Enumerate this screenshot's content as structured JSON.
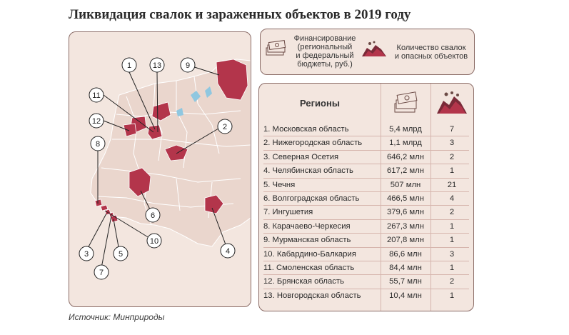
{
  "title": "Ликвидация свалок и зараженных объектов в 2019 году",
  "source": "Источник: Минприроды",
  "legend": {
    "funding": "Финансирование\n(региональный\nи федеральный\nбюджеты, руб.)",
    "dumps": "Количество свалок\nи опасных объектов"
  },
  "table": {
    "header_region": "Регионы",
    "rows": [
      {
        "region": "1. Московская область",
        "funding": "5,4 млрд",
        "count": "7"
      },
      {
        "region": "2. Нижегородская область",
        "funding": "1,1 млрд",
        "count": "3"
      },
      {
        "region": "3. Северная Осетия",
        "funding": "646,2 млн",
        "count": "2"
      },
      {
        "region": "4. Челябинская область",
        "funding": "617,2 млн",
        "count": "1"
      },
      {
        "region": "5. Чечня",
        "funding": "507 млн",
        "count": "21"
      },
      {
        "region": "6. Волгоградская область",
        "funding": "466,5 млн",
        "count": "4"
      },
      {
        "region": "7. Ингушетия",
        "funding": "379,6 млн",
        "count": "2"
      },
      {
        "region": "8. Карачаево-Черкесия",
        "funding": "267,3 млн",
        "count": "1"
      },
      {
        "region": "9. Мурманская область",
        "funding": "207,8 млн",
        "count": "1"
      },
      {
        "region": "10. Кабардино-Балкария",
        "funding": "86,6 млн",
        "count": "3"
      },
      {
        "region": "11. Смоленская область",
        "funding": "84,4 млн",
        "count": "1"
      },
      {
        "region": "12. Брянская область",
        "funding": "55,7 млн",
        "count": "2"
      },
      {
        "region": "13. Новгородская область",
        "funding": "10,4 млн",
        "count": "1"
      }
    ]
  },
  "map": {
    "callouts": [
      "1",
      "2",
      "3",
      "4",
      "5",
      "6",
      "7",
      "8",
      "9",
      "10",
      "11",
      "12",
      "13"
    ]
  },
  "colors": {
    "panel": "#f3e6df",
    "region_base": "#ead6cd",
    "highlight": "#b3354b",
    "water": "#8fc7e0",
    "border": "#8a6b66"
  }
}
